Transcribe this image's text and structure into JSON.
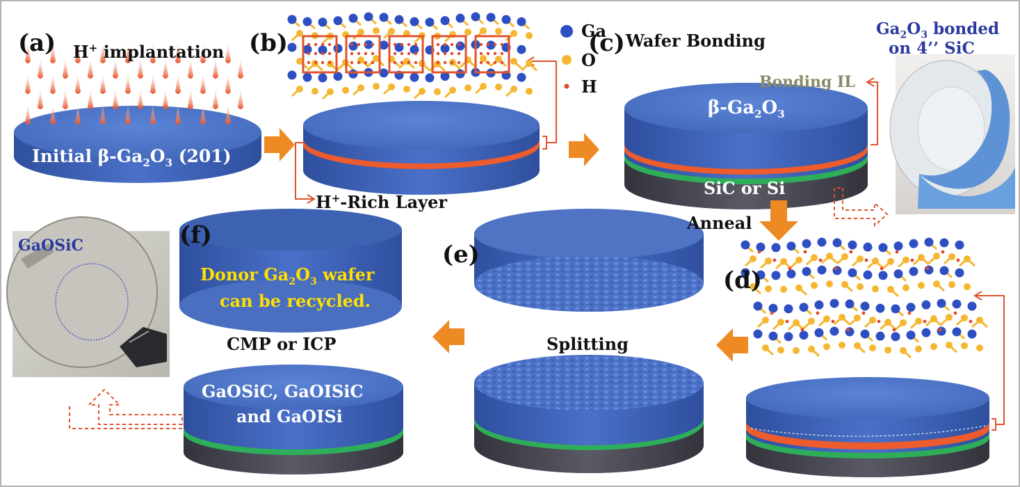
{
  "panels": {
    "a": "(a)",
    "b": "(b)",
    "c": "(c)",
    "d": "(d)",
    "e": "(e)",
    "f": "(f)"
  },
  "captions": {
    "implant_pre": "H",
    "implant_sup": "+",
    "implant_post": " implantation",
    "initial_wafer_pre": "Initial β-Ga",
    "initial_wafer_sub1": "2",
    "initial_wafer_mid": "O",
    "initial_wafer_sub2": "3",
    "initial_wafer_post": " (201)",
    "initial_wafer_bar": "2̄",
    "rich_pre": "H",
    "rich_sup": "+",
    "rich_post": "-Rich Layer",
    "wafer_bonding": "Wafer Bonding",
    "bonding_il": "Bonding  IL",
    "bgao_pre": "β-Ga",
    "bgao_sub1": "2",
    "bgao_mid": "O",
    "bgao_sub2": "3",
    "sic_or_si": "SiC or Si",
    "bonded_pre": "Ga",
    "bonded_sub1": "2",
    "bonded_mid": "O",
    "bonded_sub2": "3",
    "bonded_post": " bonded",
    "bonded_line2": "on 4’’ SiC",
    "anneal": "Anneal",
    "splitting": "Splitting",
    "cmp": "CMP or ICP",
    "donor_pre": "Donor Ga",
    "donor_sub1": "2",
    "donor_mid": "O",
    "donor_sub2": "3",
    "donor_post": " wafer",
    "recycled": "can be recycled.",
    "products_line1": "GaOSiC, GaOISiC",
    "products_line2": "and GaOISi",
    "gaosic_photo": "GaOSiC"
  },
  "legend": [
    {
      "symbol": "Ga",
      "color": "#2d4fc2"
    },
    {
      "symbol": "O",
      "color": "#f5b731"
    },
    {
      "symbol": "H",
      "color": "#e04a2a"
    }
  ],
  "colors": {
    "wafer_top": "#4a74c9",
    "wafer_side": "#3a5eb0",
    "substrate": "#4a4a55",
    "h_layer": "#ee5b2c",
    "bond_layer": "#2fae5a",
    "arrow": "#ee8a24",
    "bracket": "#e0522b",
    "donor_text": "#ffe000",
    "photo_blue": "#2b3a9e"
  }
}
